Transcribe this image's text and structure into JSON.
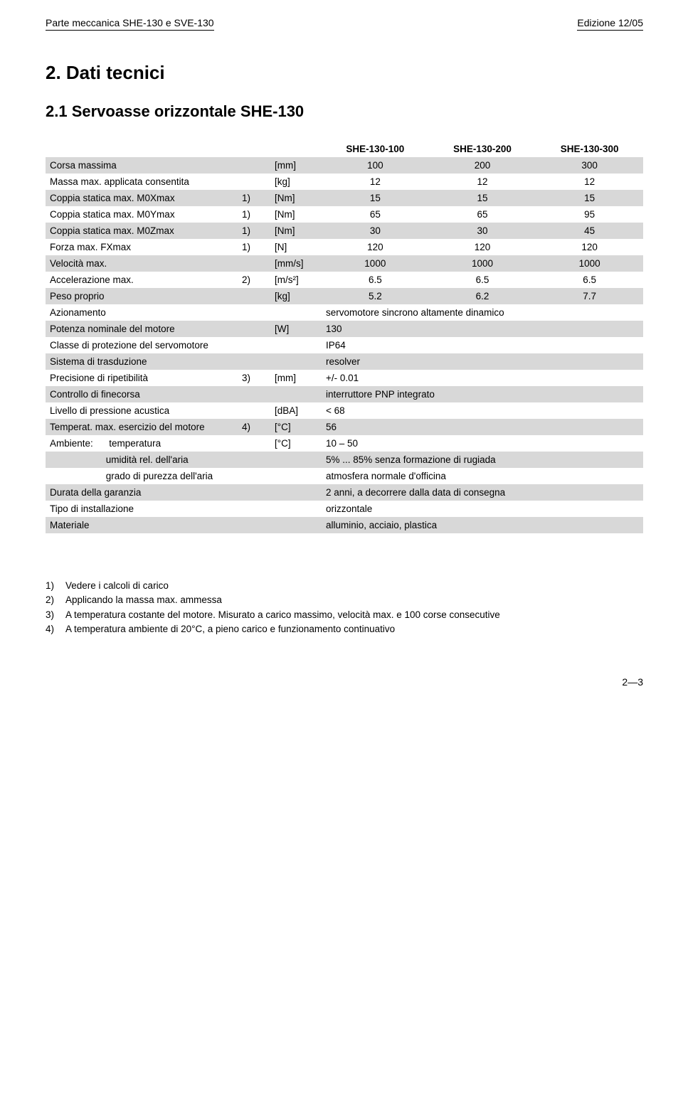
{
  "header": {
    "left": "Parte meccanica SHE-130 e SVE-130",
    "right": "Edizione 12/05"
  },
  "section": {
    "number_title": "2.   Dati tecnici",
    "sub_number_title": "2.1   Servoasse orizzontale SHE-130"
  },
  "table": {
    "col_headers": [
      "SHE-130-100",
      "SHE-130-200",
      "SHE-130-300"
    ],
    "rows": [
      {
        "band": true,
        "label": "Corsa massima",
        "note": "",
        "unit": "[mm]",
        "v": [
          "100",
          "200",
          "300"
        ]
      },
      {
        "band": false,
        "label": "Massa max. applicata consentita",
        "note": "",
        "unit": "[kg]",
        "v": [
          "12",
          "12",
          "12"
        ]
      },
      {
        "band": true,
        "label": "Coppia statica max. M0Xmax",
        "note": "1)",
        "unit": "[Nm]",
        "v": [
          "15",
          "15",
          "15"
        ]
      },
      {
        "band": false,
        "label": "Coppia statica max. M0Ymax",
        "note": "1)",
        "unit": "[Nm]",
        "v": [
          "65",
          "65",
          "95"
        ]
      },
      {
        "band": true,
        "label": "Coppia statica max. M0Zmax",
        "note": "1)",
        "unit": "[Nm]",
        "v": [
          "30",
          "30",
          "45"
        ]
      },
      {
        "band": false,
        "label": "Forza max. FXmax",
        "note": "1)",
        "unit": "[N]",
        "v": [
          "120",
          "120",
          "120"
        ]
      },
      {
        "band": true,
        "label": "Velocità max.",
        "note": "",
        "unit": "[mm/s]",
        "v": [
          "1000",
          "1000",
          "1000"
        ]
      },
      {
        "band": false,
        "label": "Accelerazione max.",
        "note": "2)",
        "unit": "[m/s²]",
        "v": [
          "6.5",
          "6.5",
          "6.5"
        ]
      },
      {
        "band": true,
        "label": "Peso proprio",
        "note": "",
        "unit": "[kg]",
        "v": [
          "5.2",
          "6.2",
          "7.7"
        ]
      },
      {
        "band": false,
        "label": "Azionamento",
        "note": "",
        "unit": "",
        "wide": "servomotore sincrono altamente dinamico"
      },
      {
        "band": true,
        "label": "Potenza nominale del motore",
        "note": "",
        "unit": "[W]",
        "wide": "130"
      },
      {
        "band": false,
        "label": "Classe di protezione del servomotore",
        "note": "",
        "unit": "",
        "wide": "IP64"
      },
      {
        "band": true,
        "label": "Sistema di trasduzione",
        "note": "",
        "unit": "",
        "wide": "resolver"
      },
      {
        "band": false,
        "label": "Precisione di ripetibilità",
        "note": "3)",
        "unit": "[mm]",
        "wide": "+/- 0.01"
      },
      {
        "band": true,
        "label": "Controllo di finecorsa",
        "note": "",
        "unit": "",
        "wide": "interruttore PNP integrato"
      },
      {
        "band": false,
        "label": "Livello di pressione acustica",
        "note": "",
        "unit": "[dBA]",
        "wide": "< 68"
      },
      {
        "band": true,
        "label": "Temperat. max. esercizio del motore",
        "note": "4)",
        "unit": "[°C]",
        "wide": "56"
      },
      {
        "band": false,
        "label": "Ambiente:      temperatura",
        "note": "",
        "unit": "[°C]",
        "wide": "10 – 50"
      },
      {
        "band": true,
        "label": "                     umidità rel. dell'aria",
        "note": "",
        "unit": "",
        "wide": "5% ... 85% senza formazione di rugiada"
      },
      {
        "band": false,
        "label": "                     grado di purezza dell'aria",
        "note": "",
        "unit": "",
        "wide": "atmosfera normale d'officina"
      },
      {
        "band": true,
        "label": "Durata della garanzia",
        "note": "",
        "unit": "",
        "wide": "2 anni, a decorrere dalla data di consegna"
      },
      {
        "band": false,
        "label": "Tipo di installazione",
        "note": "",
        "unit": "",
        "wide": "orizzontale"
      },
      {
        "band": true,
        "label": "Materiale",
        "note": "",
        "unit": "",
        "wide": "alluminio, acciaio, plastica"
      }
    ]
  },
  "footnotes": [
    {
      "n": "1)",
      "text": "Vedere i calcoli di carico"
    },
    {
      "n": "2)",
      "text": "Applicando la massa max. ammessa"
    },
    {
      "n": "3)",
      "text": "A temperatura costante del motore. Misurato a carico massimo, velocità max. e 100 corse consecutive"
    },
    {
      "n": "4)",
      "text": "A temperatura ambiente di 20°C, a pieno carico e funzionamento continuativo"
    }
  ],
  "page_number": "2—3"
}
